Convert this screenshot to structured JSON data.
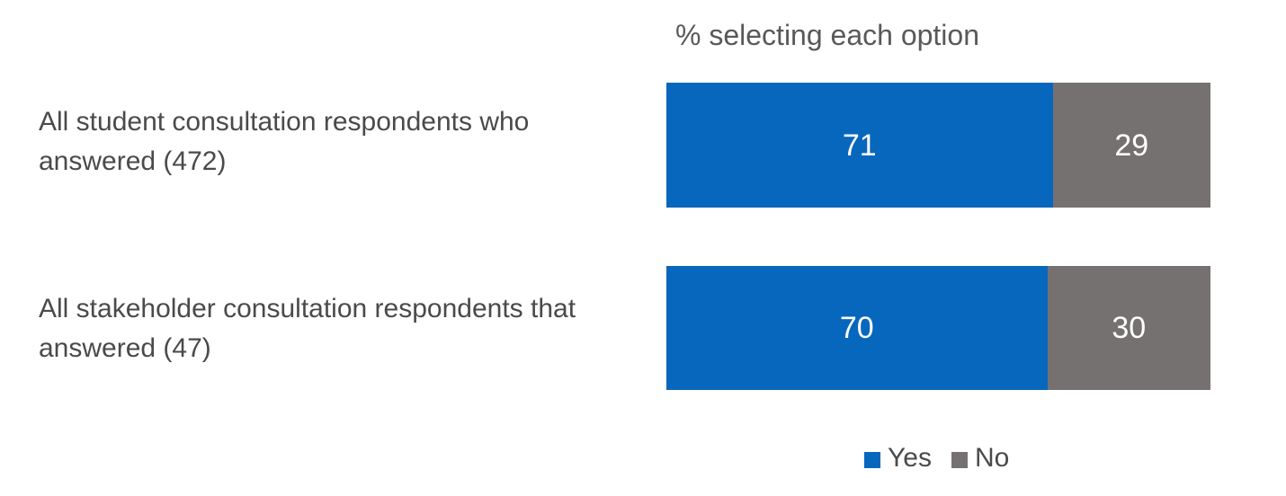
{
  "chart_data": {
    "type": "bar",
    "orientation": "horizontal",
    "stacked": true,
    "title": "% selecting each option",
    "categories": [
      "All student consultation respondents who answered (472)",
      "All stakeholder consultation respondents that answered (47)"
    ],
    "series": [
      {
        "name": "Yes",
        "color": "#0767BC",
        "values": [
          71,
          70
        ]
      },
      {
        "name": "No",
        "color": "#767171",
        "values": [
          29,
          30
        ]
      }
    ],
    "xlim": [
      0,
      100
    ],
    "value_labels_shown": true,
    "legend_position": "bottom",
    "grid": false
  },
  "colors": {
    "background": "#FFFFFF",
    "title_text": "#595959",
    "category_text": "#4A4A4A",
    "value_text": "#FFFFFF",
    "legend_text": "#4A4A4A"
  }
}
